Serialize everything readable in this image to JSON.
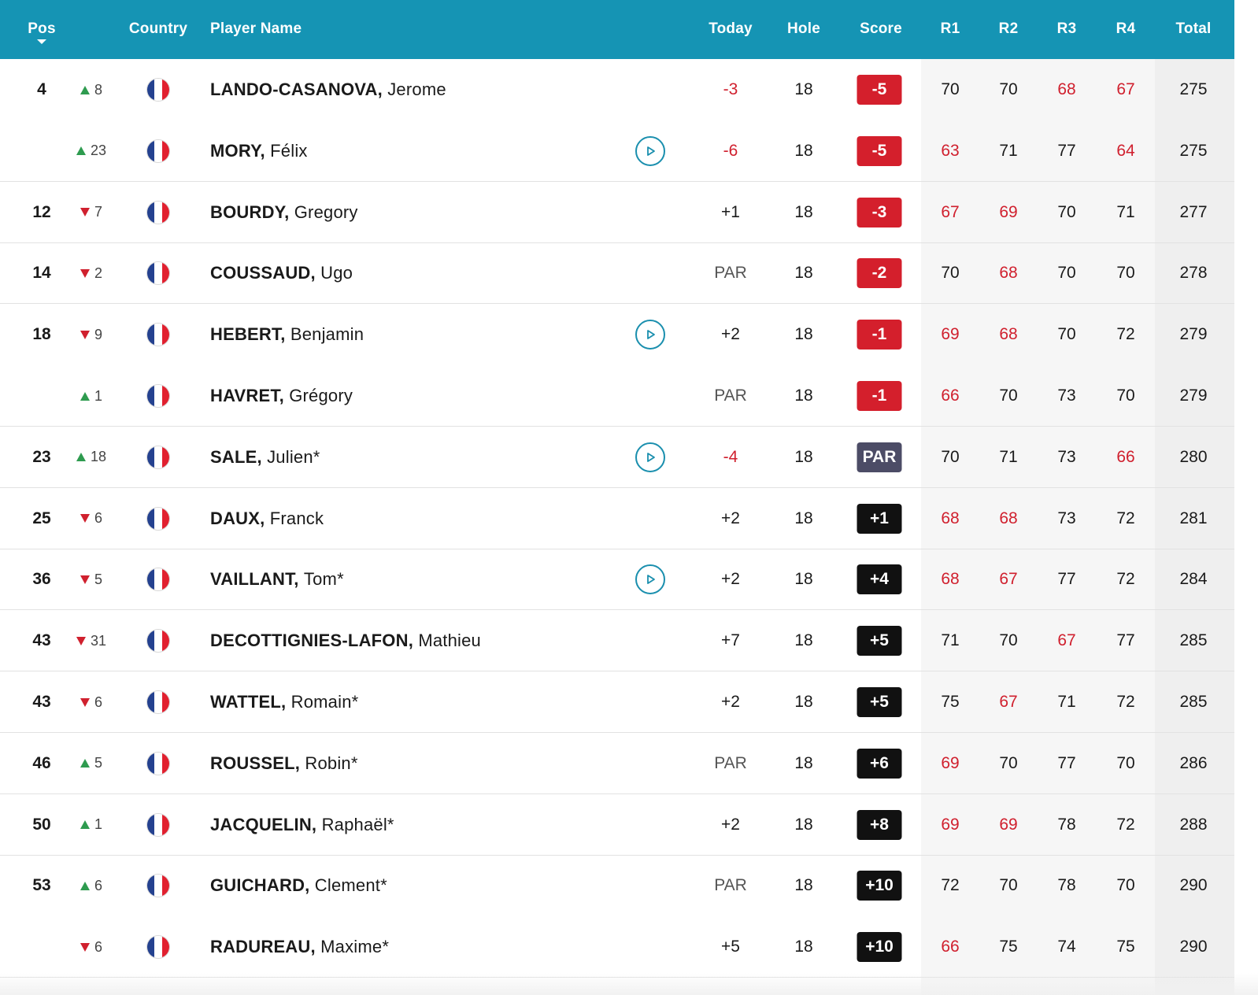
{
  "header": {
    "pos": "Pos",
    "country": "Country",
    "player_name": "Player Name",
    "today": "Today",
    "hole": "Hole",
    "score": "Score",
    "r1": "R1",
    "r2": "R2",
    "r3": "R3",
    "r4": "R4",
    "total": "Total"
  },
  "colors": {
    "header_bg": "#1594b4",
    "under_par": "#d0202e",
    "badge_red": "#d41f2c",
    "badge_par": "#4c4c66",
    "badge_over": "#111111",
    "move_up": "#2e9b4f",
    "move_down": "#d0202e"
  },
  "rows": [
    {
      "pos": "4",
      "move_dir": "up",
      "move": "8",
      "last": "LANDO-CASANOVA,",
      "first": "Jerome",
      "video": false,
      "today": "-3",
      "hole": "18",
      "score": "-5",
      "score_style": "red",
      "r1": "70",
      "r2": "70",
      "r3": "68",
      "r4": "67",
      "total": "275"
    },
    {
      "pos": "",
      "move_dir": "up",
      "move": "23",
      "last": "MORY,",
      "first": "Félix",
      "video": true,
      "today": "-6",
      "hole": "18",
      "score": "-5",
      "score_style": "red",
      "r1": "63",
      "r2": "71",
      "r3": "77",
      "r4": "64",
      "total": "275"
    },
    {
      "pos": "12",
      "move_dir": "down",
      "move": "7",
      "last": "BOURDY,",
      "first": "Gregory",
      "video": false,
      "today": "+1",
      "hole": "18",
      "score": "-3",
      "score_style": "red",
      "r1": "67",
      "r2": "69",
      "r3": "70",
      "r4": "71",
      "total": "277"
    },
    {
      "pos": "14",
      "move_dir": "down",
      "move": "2",
      "last": "COUSSAUD,",
      "first": "Ugo",
      "video": false,
      "today": "PAR",
      "hole": "18",
      "score": "-2",
      "score_style": "red",
      "r1": "70",
      "r2": "68",
      "r3": "70",
      "r4": "70",
      "total": "278"
    },
    {
      "pos": "18",
      "move_dir": "down",
      "move": "9",
      "last": "HEBERT,",
      "first": "Benjamin",
      "video": true,
      "today": "+2",
      "hole": "18",
      "score": "-1",
      "score_style": "red",
      "r1": "69",
      "r2": "68",
      "r3": "70",
      "r4": "72",
      "total": "279"
    },
    {
      "pos": "",
      "move_dir": "up",
      "move": "1",
      "last": "HAVRET,",
      "first": "Grégory",
      "video": false,
      "today": "PAR",
      "hole": "18",
      "score": "-1",
      "score_style": "red",
      "r1": "66",
      "r2": "70",
      "r3": "73",
      "r4": "70",
      "total": "279"
    },
    {
      "pos": "23",
      "move_dir": "up",
      "move": "18",
      "last": "SALE,",
      "first": "Julien*",
      "video": true,
      "today": "-4",
      "hole": "18",
      "score": "PAR",
      "score_style": "par",
      "r1": "70",
      "r2": "71",
      "r3": "73",
      "r4": "66",
      "total": "280"
    },
    {
      "pos": "25",
      "move_dir": "down",
      "move": "6",
      "last": "DAUX,",
      "first": "Franck",
      "video": false,
      "today": "+2",
      "hole": "18",
      "score": "+1",
      "score_style": "black",
      "r1": "68",
      "r2": "68",
      "r3": "73",
      "r4": "72",
      "total": "281"
    },
    {
      "pos": "36",
      "move_dir": "down",
      "move": "5",
      "last": "VAILLANT,",
      "first": "Tom*",
      "video": true,
      "today": "+2",
      "hole": "18",
      "score": "+4",
      "score_style": "black",
      "r1": "68",
      "r2": "67",
      "r3": "77",
      "r4": "72",
      "total": "284"
    },
    {
      "pos": "43",
      "move_dir": "down",
      "move": "31",
      "last": "DECOTTIGNIES-LAFON,",
      "first": "Mathieu",
      "video": false,
      "today": "+7",
      "hole": "18",
      "score": "+5",
      "score_style": "black",
      "r1": "71",
      "r2": "70",
      "r3": "67",
      "r4": "77",
      "total": "285"
    },
    {
      "pos": "43",
      "move_dir": "down",
      "move": "6",
      "last": "WATTEL,",
      "first": "Romain*",
      "video": false,
      "today": "+2",
      "hole": "18",
      "score": "+5",
      "score_style": "black",
      "r1": "75",
      "r2": "67",
      "r3": "71",
      "r4": "72",
      "total": "285"
    },
    {
      "pos": "46",
      "move_dir": "up",
      "move": "5",
      "last": "ROUSSEL,",
      "first": "Robin*",
      "video": false,
      "today": "PAR",
      "hole": "18",
      "score": "+6",
      "score_style": "black",
      "r1": "69",
      "r2": "70",
      "r3": "77",
      "r4": "70",
      "total": "286"
    },
    {
      "pos": "50",
      "move_dir": "up",
      "move": "1",
      "last": "JACQUELIN,",
      "first": "Raphaël*",
      "video": false,
      "today": "+2",
      "hole": "18",
      "score": "+8",
      "score_style": "black",
      "r1": "69",
      "r2": "69",
      "r3": "78",
      "r4": "72",
      "total": "288"
    },
    {
      "pos": "53",
      "move_dir": "up",
      "move": "6",
      "last": "GUICHARD,",
      "first": "Clement*",
      "video": false,
      "today": "PAR",
      "hole": "18",
      "score": "+10",
      "score_style": "black",
      "r1": "72",
      "r2": "70",
      "r3": "78",
      "r4": "70",
      "total": "290"
    },
    {
      "pos": "",
      "move_dir": "down",
      "move": "6",
      "last": "RADUREAU,",
      "first": "Maxime*",
      "video": false,
      "today": "+5",
      "hole": "18",
      "score": "+10",
      "score_style": "black",
      "r1": "66",
      "r2": "75",
      "r3": "74",
      "r4": "75",
      "total": "290"
    }
  ]
}
